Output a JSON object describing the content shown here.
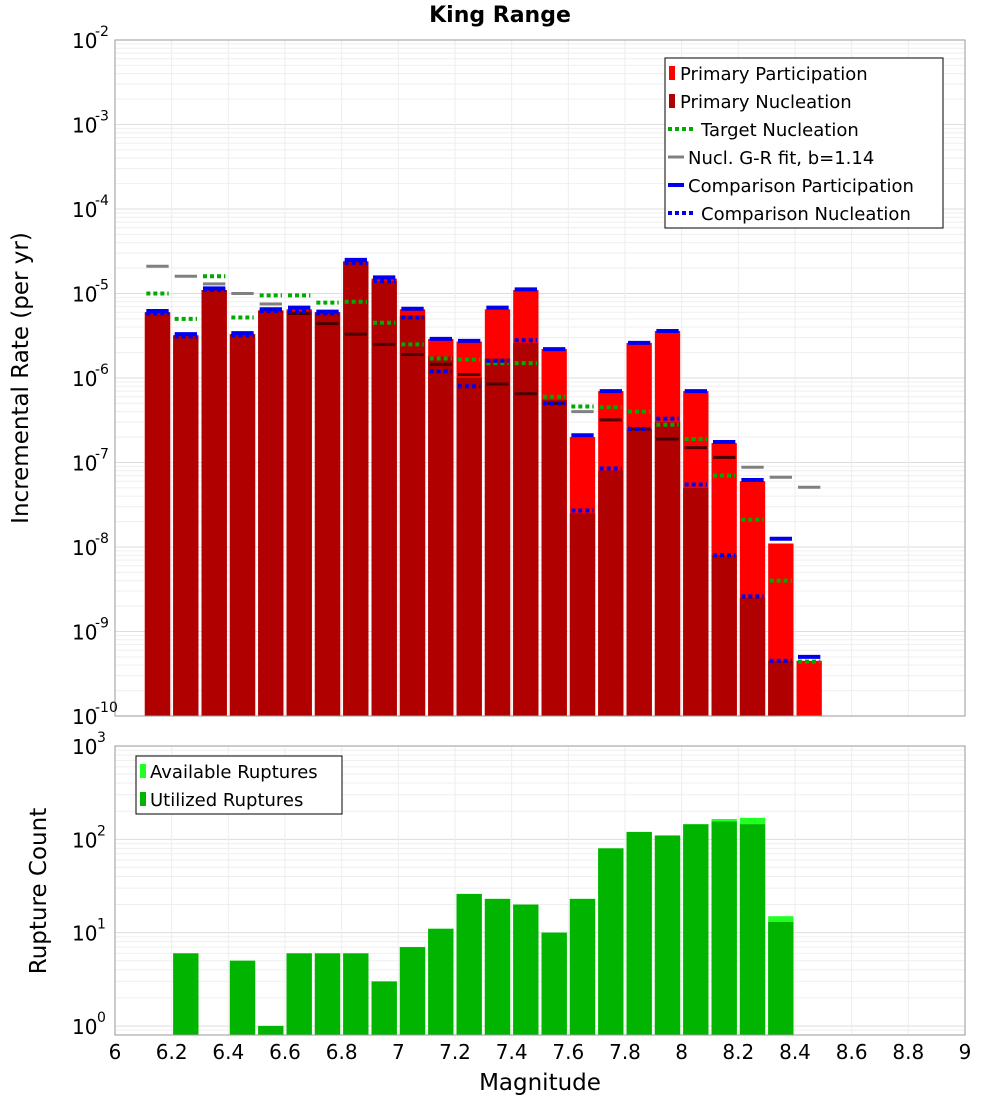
{
  "chart_data": [
    {
      "type": "bar",
      "title": "King Range",
      "ylabel": "Incremental Rate (per yr)",
      "xlabel": "",
      "y_scale": "log",
      "ylim": [
        1e-10,
        0.01
      ],
      "xlim": [
        6,
        9
      ],
      "bin_width": 0.1,
      "legend_position": "top-right",
      "legend": [
        "Primary Participation",
        "Primary Nucleation",
        "Target Nucleation",
        "Nucl. G-R fit, b=1.14",
        "Comparison Participation",
        "Comparison Nucleation"
      ],
      "colors": {
        "participation": "#ff0000",
        "nucleation": "#b00000",
        "target": "#00aa00",
        "gr_fit": "#808080",
        "comparison": "#0000ee",
        "nucl_line": "#4a0000"
      },
      "x": [
        6.15,
        6.25,
        6.35,
        6.45,
        6.55,
        6.65,
        6.75,
        6.85,
        6.95,
        7.05,
        7.15,
        7.25,
        7.35,
        7.45,
        7.55,
        7.65,
        7.75,
        7.85,
        7.95,
        8.05,
        8.15,
        8.25,
        8.35,
        8.45
      ],
      "series": [
        {
          "name": "Primary Participation",
          "values": [
            6e-06,
            3.2e-06,
            1.1e-05,
            3.3e-06,
            6.3e-06,
            6.5e-06,
            6e-06,
            2.4e-05,
            1.5e-05,
            6.5e-06,
            2.9e-06,
            2.7e-06,
            6.5e-06,
            1.1e-05,
            2.2e-06,
            2e-07,
            7e-07,
            2.6e-06,
            3.6e-06,
            7e-07,
            1.7e-07,
            6e-08,
            1.1e-08,
            4.5e-10
          ]
        },
        {
          "name": "Primary Nucleation",
          "values": [
            6e-06,
            3.2e-06,
            1.1e-05,
            3.3e-06,
            6.3e-06,
            6.2e-06,
            6e-06,
            2.4e-05,
            1.4e-05,
            5.5e-06,
            1.8e-06,
            1e-06,
            1.7e-06,
            2.6e-06,
            5.5e-07,
            2.5e-08,
            8e-08,
            2.5e-07,
            3e-07,
            5e-08,
            8e-09,
            2.5e-09,
            4.5e-10,
            1e-10
          ]
        },
        {
          "name": "Target Nucleation",
          "values": [
            1e-05,
            5e-06,
            1.6e-05,
            5.2e-06,
            9.5e-06,
            9.5e-06,
            7.8e-06,
            8e-06,
            4.5e-06,
            2.5e-06,
            1.7e-06,
            1.65e-06,
            1.5e-06,
            1.5e-06,
            6e-07,
            4.6e-07,
            4.5e-07,
            4e-07,
            2.8e-07,
            1.9e-07,
            7e-08,
            2.1e-08,
            4e-09,
            4.4e-10
          ]
        },
        {
          "name": "Nucl. G-R fit, b=1.14",
          "values": [
            2.1e-05,
            1.6e-05,
            1.3e-05,
            1e-05,
            7.5e-06,
            5.8e-06,
            4.4e-06,
            3.3e-06,
            2.5e-06,
            1.9e-06,
            1.45e-06,
            1.1e-06,
            8.5e-07,
            6.5e-07,
            5e-07,
            4e-07,
            3.2e-07,
            2.5e-07,
            1.9e-07,
            1.5e-07,
            1.15e-07,
            8.8e-08,
            6.7e-08,
            5.1e-08
          ]
        },
        {
          "name": "Comparison Participation",
          "values": [
            6.2e-06,
            3.3e-06,
            1.15e-05,
            3.4e-06,
            6.5e-06,
            6.8e-06,
            6.1e-06,
            2.5e-05,
            1.55e-05,
            6.6e-06,
            2.9e-06,
            2.75e-06,
            6.8e-06,
            1.12e-05,
            2.2e-06,
            2.1e-07,
            7e-07,
            2.6e-06,
            3.6e-06,
            7e-07,
            1.75e-07,
            6.2e-08,
            1.25e-08,
            5e-10
          ]
        },
        {
          "name": "Comparison Nucleation",
          "values": [
            5.8e-06,
            3.1e-06,
            1.1e-05,
            3.2e-06,
            6.2e-06,
            6.1e-06,
            5.8e-06,
            2.3e-05,
            1.4e-05,
            5.2e-06,
            1.2e-06,
            8e-07,
            1.6e-06,
            2.8e-06,
            5e-07,
            2.7e-08,
            8.5e-08,
            2.5e-07,
            3.3e-07,
            5.5e-08,
            8e-09,
            2.6e-09,
            4.5e-10,
            null
          ]
        }
      ],
      "y_ticks": [
        {
          "base": "10",
          "exp": "-10"
        },
        {
          "base": "10",
          "exp": "-9"
        },
        {
          "base": "10",
          "exp": "-8"
        },
        {
          "base": "10",
          "exp": "-7"
        },
        {
          "base": "10",
          "exp": "-6"
        },
        {
          "base": "10",
          "exp": "-5"
        },
        {
          "base": "10",
          "exp": "-4"
        },
        {
          "base": "10",
          "exp": "-3"
        },
        {
          "base": "10",
          "exp": "-2"
        }
      ]
    },
    {
      "type": "bar",
      "title": "",
      "ylabel": "Rupture Count",
      "xlabel": "Magnitude",
      "y_scale": "log",
      "ylim": [
        0.8,
        1000
      ],
      "xlim": [
        6,
        9
      ],
      "bin_width": 0.1,
      "legend_position": "top-left",
      "legend": [
        "Available Ruptures",
        "Utilized Ruptures"
      ],
      "colors": {
        "available": "#22ff22",
        "utilized": "#00b400"
      },
      "x": [
        6.15,
        6.25,
        6.35,
        6.45,
        6.55,
        6.65,
        6.75,
        6.85,
        6.95,
        7.05,
        7.15,
        7.25,
        7.35,
        7.45,
        7.55,
        7.65,
        7.75,
        7.85,
        7.95,
        8.05,
        8.15,
        8.25,
        8.35,
        8.45
      ],
      "series": [
        {
          "name": "Available Ruptures",
          "values": [
            null,
            6,
            null,
            5,
            1,
            6,
            6,
            6,
            3,
            7,
            11,
            26,
            23,
            20,
            10,
            23,
            80,
            120,
            110,
            145,
            165,
            170,
            15,
            null
          ]
        },
        {
          "name": "Utilized Ruptures",
          "values": [
            null,
            6,
            null,
            5,
            1,
            6,
            6,
            6,
            3,
            7,
            11,
            26,
            23,
            20,
            10,
            23,
            80,
            120,
            110,
            145,
            155,
            145,
            13,
            null
          ]
        }
      ],
      "y_ticks": [
        {
          "base": "10",
          "exp": "0"
        },
        {
          "base": "10",
          "exp": "1"
        },
        {
          "base": "10",
          "exp": "2"
        },
        {
          "base": "10",
          "exp": "3"
        }
      ],
      "x_ticks": [
        "6",
        "6.2",
        "6.4",
        "6.6",
        "6.8",
        "7",
        "7.2",
        "7.4",
        "7.6",
        "7.8",
        "8",
        "8.2",
        "8.4",
        "8.6",
        "8.8",
        "9"
      ]
    }
  ]
}
